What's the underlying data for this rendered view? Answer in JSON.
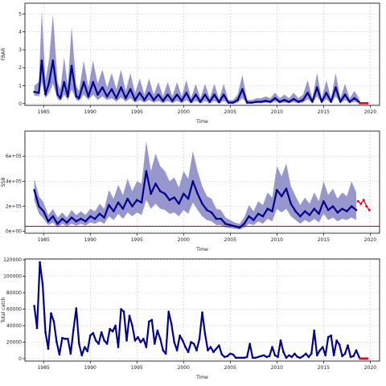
{
  "chart_data": [
    {
      "type": "line",
      "ylabel": "FBAR",
      "xlabel": "Time",
      "xlim": [
        1983,
        2021
      ],
      "ylim": [
        -0.1,
        5.6
      ],
      "xticks": [
        "1985",
        "1990",
        "1995",
        "2000",
        "2005",
        "2010",
        "2015",
        "2020"
      ],
      "yticks": [
        "0",
        "1",
        "2",
        "3",
        "4",
        "5"
      ],
      "ytick_values": [
        0,
        1,
        2,
        3,
        4,
        5
      ],
      "grid": true,
      "series": [
        {
          "x": [
            1984.0,
            1984.5,
            1984.8,
            1985.2,
            1985.6,
            1986.0,
            1986.5,
            1986.8,
            1987.2,
            1987.6,
            1988.0,
            1988.5,
            1988.8,
            1989.3,
            1989.8,
            1990.3,
            1990.8,
            1991.3,
            1991.8,
            1992.3,
            1992.8,
            1993.3,
            1993.8,
            1994.3,
            1994.8,
            1995.3,
            1995.8,
            1996.3,
            1996.8,
            1997.3,
            1997.8,
            1998.3,
            1998.8,
            1999.3,
            1999.8,
            2000.3,
            2000.8,
            2001.3,
            2001.8,
            2002.3,
            2002.8,
            2003.3,
            2003.8,
            2004.3,
            2004.8,
            2005.3,
            2005.8,
            2006.3,
            2006.8,
            2007.3,
            2007.8,
            2008.3,
            2008.8,
            2009.3,
            2009.8,
            2010.3,
            2010.8,
            2011.3,
            2011.8,
            2012.3,
            2012.8,
            2013.3,
            2013.8,
            2014.3,
            2014.8,
            2015.3,
            2015.8,
            2016.3,
            2016.8,
            2017.3,
            2017.8,
            2018.3,
            2018.8
          ],
          "y": [
            0.65,
            0.6,
            2.4,
            0.5,
            1.2,
            2.4,
            0.5,
            0.3,
            1.2,
            0.4,
            2.1,
            0.4,
            0.3,
            1.2,
            0.4,
            1.2,
            0.5,
            0.9,
            0.4,
            0.8,
            0.3,
            0.9,
            0.3,
            0.8,
            0.2,
            0.6,
            0.2,
            0.6,
            0.2,
            0.5,
            0.15,
            0.5,
            0.15,
            0.5,
            0.15,
            0.6,
            0.1,
            0.5,
            0.1,
            0.5,
            0.1,
            0.5,
            0.08,
            0.5,
            0.05,
            0.05,
            0.2,
            0.8,
            0.05,
            0.05,
            0.1,
            0.1,
            0.15,
            0.1,
            0.3,
            0.1,
            0.2,
            0.1,
            0.25,
            0.1,
            0.2,
            0.6,
            0.1,
            0.9,
            0.1,
            0.6,
            0.1,
            0.9,
            0.1,
            0.5,
            0.1,
            0.3,
            0.1
          ],
          "lower": [
            0.45,
            0.4,
            1.2,
            0.3,
            0.6,
            1.1,
            0.25,
            0.15,
            0.5,
            0.2,
            0.8,
            0.2,
            0.15,
            0.5,
            0.2,
            0.5,
            0.2,
            0.4,
            0.2,
            0.3,
            0.1,
            0.35,
            0.1,
            0.3,
            0.05,
            0.2,
            0.05,
            0.2,
            0.05,
            0.15,
            0.02,
            0.15,
            0.02,
            0.15,
            0.02,
            0.2,
            0.0,
            0.15,
            0.0,
            0.15,
            0.0,
            0.15,
            0.0,
            0.15,
            0.0,
            0.0,
            0.05,
            0.3,
            0.0,
            0.0,
            0.02,
            0.02,
            0.05,
            0.02,
            0.1,
            0.02,
            0.05,
            0.02,
            0.08,
            0.02,
            0.05,
            0.25,
            0.02,
            0.4,
            0.02,
            0.25,
            0.02,
            0.4,
            0.02,
            0.2,
            0.02,
            0.1,
            0.02
          ],
          "upper": [
            1.0,
            1.2,
            5.2,
            1.3,
            2.5,
            5.0,
            1.2,
            0.8,
            2.6,
            1.0,
            4.3,
            1.0,
            0.7,
            2.4,
            0.9,
            2.4,
            1.1,
            1.9,
            0.9,
            1.7,
            0.8,
            1.9,
            0.7,
            1.7,
            0.6,
            1.4,
            0.5,
            1.4,
            0.5,
            1.2,
            0.4,
            1.2,
            0.4,
            1.2,
            0.4,
            1.3,
            0.3,
            1.1,
            0.3,
            1.1,
            0.3,
            1.1,
            0.25,
            1.1,
            0.2,
            0.2,
            0.5,
            1.6,
            0.2,
            0.2,
            0.3,
            0.3,
            0.4,
            0.3,
            0.6,
            0.3,
            0.5,
            0.3,
            0.6,
            0.3,
            0.5,
            1.3,
            0.3,
            1.7,
            0.3,
            1.3,
            0.3,
            1.7,
            0.3,
            1.1,
            0.3,
            0.7,
            0.3
          ]
        }
      ],
      "red_points": {
        "x": [
          2018.9,
          2019.1,
          2019.3,
          2019.5,
          2019.7
        ],
        "y": [
          0.02,
          0.02,
          0.02,
          0.02,
          0.02
        ]
      },
      "colors": {
        "line": "#00008b",
        "band": "#8c8cc8",
        "red": "#e8001c"
      }
    },
    {
      "type": "line",
      "ylabel": "SSB",
      "xlabel": "Time",
      "xlim": [
        1983,
        2021
      ],
      "ylim": [
        -15000,
        800000
      ],
      "xticks": [
        "1985",
        "1990",
        "1995",
        "2000",
        "2005",
        "2010",
        "2015",
        "2020"
      ],
      "yticks": [
        "0e+00",
        "2e+05",
        "4e+05",
        "6e+05"
      ],
      "ytick_values": [
        0,
        200000,
        400000,
        600000
      ],
      "grid": true,
      "hline": {
        "y": 40000,
        "color": "#e8001c"
      },
      "series": [
        {
          "x": [
            1984.0,
            1984.5,
            1985.0,
            1985.5,
            1986.0,
            1986.5,
            1987.0,
            1987.5,
            1988.0,
            1988.5,
            1989.0,
            1989.5,
            1990.0,
            1990.5,
            1991.0,
            1991.5,
            1992.0,
            1992.5,
            1993.0,
            1993.5,
            1994.0,
            1994.5,
            1995.0,
            1995.5,
            1996.0,
            1996.5,
            1997.0,
            1997.5,
            1998.0,
            1998.5,
            1999.0,
            1999.5,
            2000.0,
            2000.5,
            2001.0,
            2001.5,
            2002.0,
            2002.5,
            2003.0,
            2003.5,
            2004.0,
            2004.5,
            2005.0,
            2005.5,
            2006.0,
            2006.5,
            2007.0,
            2007.5,
            2008.0,
            2008.5,
            2009.0,
            2009.5,
            2010.0,
            2010.5,
            2011.0,
            2011.5,
            2012.0,
            2012.5,
            2013.0,
            2013.5,
            2014.0,
            2014.5,
            2015.0,
            2015.5,
            2016.0,
            2016.5,
            2017.0,
            2017.5,
            2018.0,
            2018.5
          ],
          "y": [
            330000,
            200000,
            160000,
            80000,
            120000,
            60000,
            100000,
            70000,
            110000,
            80000,
            100000,
            80000,
            120000,
            100000,
            140000,
            110000,
            210000,
            160000,
            230000,
            180000,
            260000,
            200000,
            250000,
            230000,
            480000,
            300000,
            380000,
            320000,
            300000,
            250000,
            270000,
            220000,
            300000,
            260000,
            400000,
            300000,
            220000,
            170000,
            150000,
            100000,
            100000,
            60000,
            50000,
            40000,
            30000,
            60000,
            120000,
            90000,
            140000,
            120000,
            180000,
            160000,
            330000,
            280000,
            340000,
            220000,
            160000,
            120000,
            160000,
            130000,
            180000,
            140000,
            240000,
            170000,
            200000,
            150000,
            180000,
            160000,
            200000,
            170000
          ],
          "lower": [
            250000,
            140000,
            100000,
            50000,
            70000,
            30000,
            60000,
            40000,
            60000,
            45000,
            60000,
            45000,
            70000,
            60000,
            80000,
            60000,
            120000,
            90000,
            140000,
            100000,
            150000,
            120000,
            150000,
            130000,
            250000,
            180000,
            220000,
            180000,
            170000,
            140000,
            150000,
            120000,
            170000,
            140000,
            230000,
            170000,
            120000,
            90000,
            80000,
            50000,
            50000,
            30000,
            25000,
            20000,
            15000,
            30000,
            60000,
            50000,
            80000,
            60000,
            100000,
            80000,
            180000,
            150000,
            180000,
            120000,
            90000,
            60000,
            90000,
            70000,
            100000,
            70000,
            140000,
            90000,
            110000,
            80000,
            100000,
            90000,
            110000,
            90000
          ],
          "upper": [
            420000,
            280000,
            230000,
            130000,
            180000,
            110000,
            150000,
            110000,
            170000,
            130000,
            160000,
            130000,
            180000,
            160000,
            220000,
            180000,
            330000,
            260000,
            370000,
            290000,
            420000,
            320000,
            400000,
            380000,
            720000,
            480000,
            620000,
            520000,
            480000,
            400000,
            430000,
            350000,
            480000,
            420000,
            640000,
            480000,
            360000,
            280000,
            260000,
            180000,
            170000,
            110000,
            90000,
            70000,
            60000,
            110000,
            210000,
            160000,
            240000,
            210000,
            310000,
            270000,
            520000,
            440000,
            540000,
            360000,
            280000,
            210000,
            270000,
            220000,
            310000,
            240000,
            400000,
            290000,
            340000,
            260000,
            310000,
            280000,
            400000,
            310000
          ]
        }
      ],
      "red_points": {
        "x": [
          2018.7,
          2019.0,
          2019.3,
          2019.6,
          2019.9
        ],
        "y": [
          240000,
          220000,
          250000,
          200000,
          170000
        ]
      },
      "colors": {
        "line": "#00008b",
        "band": "#8c8cc8",
        "red": "#e8001c"
      }
    },
    {
      "type": "line",
      "ylabel": "Total catch",
      "xlabel": "Time",
      "xlim": [
        1983,
        2021
      ],
      "ylim": [
        -3000,
        121000
      ],
      "xticks": [
        "1985",
        "1990",
        "1995",
        "2000",
        "2005",
        "2010",
        "2015",
        "2020"
      ],
      "yticks": [
        "0",
        "20000",
        "40000",
        "60000",
        "80000",
        "100000",
        "120000"
      ],
      "ytick_values": [
        0,
        20000,
        40000,
        60000,
        80000,
        100000,
        120000
      ],
      "grid": true,
      "series": [
        {
          "x": [
            1984.0,
            1984.3,
            1984.6,
            1984.9,
            1985.2,
            1985.5,
            1985.8,
            1986.1,
            1986.4,
            1986.7,
            1987.0,
            1987.3,
            1987.6,
            1987.9,
            1988.2,
            1988.5,
            1988.8,
            1989.1,
            1989.4,
            1989.7,
            1990.0,
            1990.3,
            1990.6,
            1990.9,
            1991.2,
            1991.5,
            1991.8,
            1992.1,
            1992.4,
            1992.7,
            1993.0,
            1993.3,
            1993.6,
            1993.9,
            1994.2,
            1994.5,
            1994.8,
            1995.1,
            1995.4,
            1995.7,
            1996.0,
            1996.3,
            1996.6,
            1996.9,
            1997.2,
            1997.5,
            1997.8,
            1998.1,
            1998.4,
            1998.7,
            1999.0,
            1999.3,
            1999.6,
            1999.9,
            2000.2,
            2000.5,
            2000.8,
            2001.1,
            2001.4,
            2001.7,
            2002.0,
            2002.3,
            2002.6,
            2002.9,
            2003.2,
            2003.5,
            2003.8,
            2004.1,
            2004.4,
            2004.7,
            2005.0,
            2005.3,
            2005.6,
            2005.9,
            2006.2,
            2006.5,
            2006.8,
            2007.1,
            2007.4,
            2007.7,
            2008.0,
            2008.3,
            2008.6,
            2008.9,
            2009.2,
            2009.5,
            2009.8,
            2010.1,
            2010.4,
            2010.7,
            2011.0,
            2011.3,
            2011.6,
            2011.9,
            2012.2,
            2012.5,
            2012.8,
            2013.1,
            2013.4,
            2013.7,
            2014.0,
            2014.3,
            2014.6,
            2014.9,
            2015.2,
            2015.5,
            2015.8,
            2016.1,
            2016.4,
            2016.7,
            2017.0,
            2017.3,
            2017.6,
            2017.9,
            2018.2,
            2018.5,
            2018.8
          ],
          "y": [
            64000,
            37000,
            117000,
            90000,
            32000,
            12000,
            55000,
            45000,
            20000,
            5000,
            25000,
            24000,
            24000,
            6000,
            35000,
            61000,
            18000,
            4000,
            14000,
            9000,
            28000,
            31000,
            22000,
            18000,
            32000,
            22000,
            18000,
            36000,
            33000,
            40000,
            14000,
            60000,
            57000,
            22000,
            52000,
            40000,
            22000,
            26000,
            20000,
            24000,
            14000,
            45000,
            47000,
            18000,
            34000,
            24000,
            10000,
            6000,
            57000,
            42000,
            20000,
            10000,
            28000,
            22000,
            14000,
            8000,
            20000,
            18000,
            10000,
            24000,
            56000,
            30000,
            10000,
            14000,
            8000,
            12000,
            16000,
            5000,
            2000,
            3000,
            6000,
            5000,
            1000,
            1000,
            1000,
            1000,
            2000,
            18000,
            1000,
            1000,
            2000,
            3000,
            4000,
            2000,
            3000,
            14000,
            4000,
            2000,
            22000,
            8000,
            1000,
            4000,
            2000,
            6000,
            2000,
            1000,
            3000,
            6000,
            2000,
            6000,
            34000,
            4000,
            10000,
            14000,
            4000,
            26000,
            28000,
            4000,
            22000,
            17000,
            3000,
            6000,
            16000,
            2000,
            3000,
            10000,
            2000
          ]
        }
      ],
      "red_points": {
        "x": [
          2018.9,
          2019.1,
          2019.3,
          2019.5,
          2019.7
        ],
        "y": [
          100,
          100,
          100,
          100,
          100
        ]
      },
      "colors": {
        "line": "#00008b",
        "band": "#8c8cc8",
        "red": "#e8001c"
      }
    }
  ]
}
